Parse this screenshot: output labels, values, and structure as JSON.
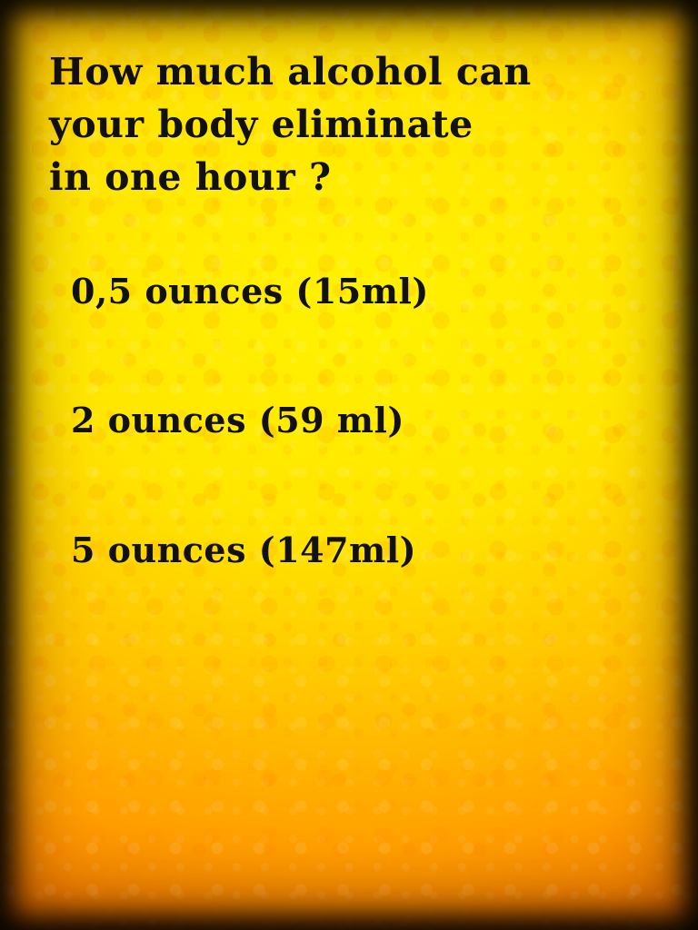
{
  "question": {
    "lines": [
      "How much alcohol can",
      "your body eliminate",
      "in one hour ?"
    ]
  },
  "answers": [
    {
      "label": "0,5 ounces (15ml)"
    },
    {
      "label": "2 ounces (59 ml)"
    },
    {
      "label": "5 ounces (147ml)"
    }
  ]
}
